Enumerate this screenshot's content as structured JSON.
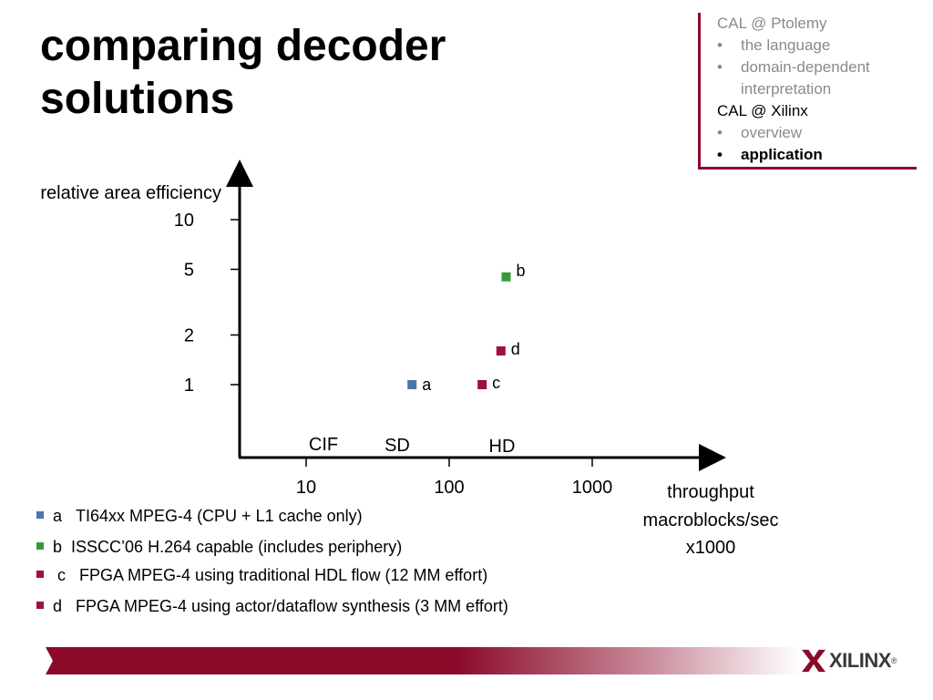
{
  "title_lines": [
    "comparing decoder",
    "solutions"
  ],
  "outline": {
    "items": [
      {
        "label": "CAL @ Ptolemy",
        "bullet": "",
        "state": "dim"
      },
      {
        "label": "the language",
        "bullet": "•",
        "state": "dim"
      },
      {
        "label": "domain-dependent",
        "bullet": "•",
        "state": "dim"
      },
      {
        "label": "interpretation",
        "bullet": "",
        "state": "dim"
      },
      {
        "label": "CAL @ Xilinx",
        "bullet": "",
        "state": "head-active"
      },
      {
        "label": "overview",
        "bullet": "•",
        "state": "dim"
      },
      {
        "label": "application",
        "bullet": "•",
        "state": "active"
      }
    ]
  },
  "colors": {
    "accent": "#8b0a2a",
    "series_a": "#4a76a8",
    "series_b": "#3a9a3a",
    "series_cd": "#a0103a",
    "outline_dim": "#8a8a8a"
  },
  "chart_data": {
    "type": "scatter",
    "ylabel": "relative area efficiency",
    "xlabel": [
      "throughput",
      "macroblocks/sec",
      "x1000"
    ],
    "x_scale": "log",
    "y_scale": "log",
    "x_ticks": [
      "10",
      "100",
      "1000"
    ],
    "y_ticks": [
      "10",
      "5",
      "2",
      "1"
    ],
    "region_labels": [
      "CIF",
      "SD",
      "HD"
    ],
    "points": [
      {
        "label": "a",
        "x": 55,
        "y": 1.0,
        "color": "#4a76a8"
      },
      {
        "label": "b",
        "x": 250,
        "y": 4.5,
        "color": "#3a9a3a"
      },
      {
        "label": "c",
        "x": 170,
        "y": 1.0,
        "color": "#a0103a"
      },
      {
        "label": "d",
        "x": 230,
        "y": 1.6,
        "color": "#a0103a"
      }
    ]
  },
  "legend": [
    {
      "key": "a",
      "text": "TI64xx MPEG-4 (CPU + L1 cache only)",
      "color": "#4a76a8"
    },
    {
      "key": "b",
      "text": "ISSCC’06 H.264 capable (includes periphery)",
      "color": "#3a9a3a"
    },
    {
      "key": "c",
      "text": "FPGA MPEG-4 using traditional HDL flow (12 MM effort)",
      "color": "#a0103a"
    },
    {
      "key": "d",
      "text": "FPGA MPEG-4 using actor/dataflow synthesis (3 MM effort)",
      "color": "#a0103a"
    }
  ],
  "footer": {
    "logo_text": "XILINX",
    "logo_reg": "®"
  }
}
